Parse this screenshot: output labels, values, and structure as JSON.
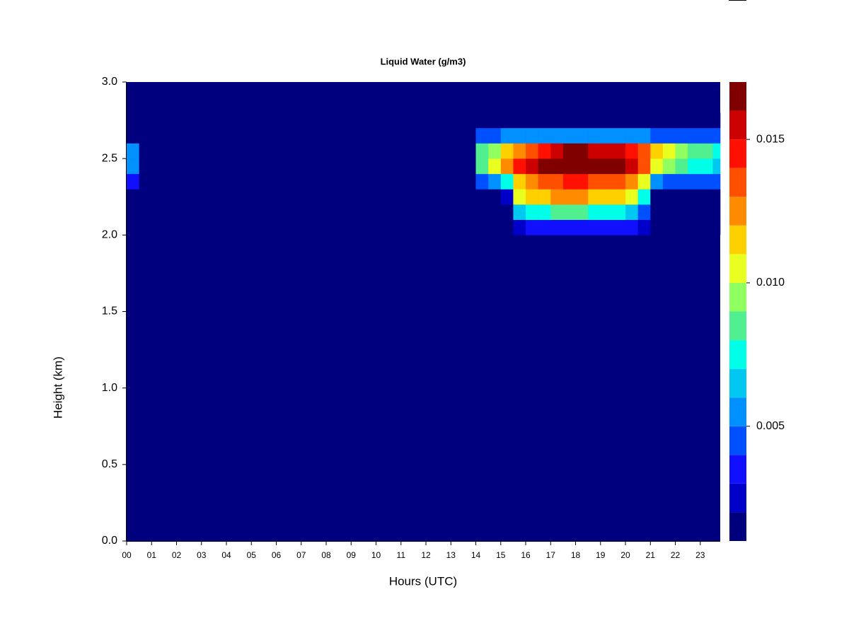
{
  "chart_data": {
    "type": "heatmap",
    "title": "Liquid Water (g/m3)",
    "x_label": "Hours (UTC)",
    "y_label": "Height (km)",
    "xlim": [
      0,
      23.8
    ],
    "ylim": [
      0,
      3.0
    ],
    "xticks": [
      {
        "value": 0,
        "label": "00"
      },
      {
        "value": 1,
        "label": "01"
      },
      {
        "value": 2,
        "label": "02"
      },
      {
        "value": 3,
        "label": "03"
      },
      {
        "value": 4,
        "label": "04"
      },
      {
        "value": 5,
        "label": "05"
      },
      {
        "value": 6,
        "label": "06"
      },
      {
        "value": 7,
        "label": "07"
      },
      {
        "value": 8,
        "label": "08"
      },
      {
        "value": 9,
        "label": "09"
      },
      {
        "value": 10,
        "label": "10"
      },
      {
        "value": 11,
        "label": "11"
      },
      {
        "value": 12,
        "label": "12"
      },
      {
        "value": 13,
        "label": "13"
      },
      {
        "value": 14,
        "label": "14"
      },
      {
        "value": 15,
        "label": "15"
      },
      {
        "value": 16,
        "label": "16"
      },
      {
        "value": 17,
        "label": "17"
      },
      {
        "value": 18,
        "label": "18"
      },
      {
        "value": 19,
        "label": "19"
      },
      {
        "value": 20,
        "label": "20"
      },
      {
        "value": 21,
        "label": "21"
      },
      {
        "value": 22,
        "label": "22"
      },
      {
        "value": 23,
        "label": "23"
      }
    ],
    "yticks": [
      {
        "value": 0,
        "label": "0.0"
      },
      0.5,
      {
        "value": 1,
        "label": "1.0"
      },
      1.5,
      {
        "value": 2,
        "label": "2.0"
      },
      2.5,
      {
        "value": 3,
        "label": "3.0"
      }
    ],
    "xbins": [
      0,
      0.5,
      1,
      1.5,
      2,
      2.5,
      3,
      3.5,
      4,
      4.5,
      5,
      5.5,
      6,
      6.5,
      7,
      7.5,
      8,
      8.5,
      9,
      9.5,
      10,
      10.5,
      11,
      11.5,
      12,
      12.5,
      13,
      13.5,
      14,
      14.5,
      15,
      15.5,
      16,
      16.5,
      17,
      17.5,
      18,
      18.5,
      19,
      19.5,
      20,
      20.5,
      21,
      21.5,
      22,
      22.5,
      23,
      23.5,
      23.8
    ],
    "ybins": [
      2.0,
      2.1,
      2.2,
      2.3,
      2.4,
      2.5,
      2.6,
      2.7,
      2.8
    ],
    "z": [
      [
        0,
        0,
        0,
        0,
        0,
        0,
        0,
        0,
        0,
        0,
        0,
        0,
        0,
        0,
        0,
        0,
        0,
        0,
        0,
        0,
        0,
        0,
        0,
        0,
        0,
        0,
        0,
        0,
        0,
        0,
        0,
        0.002,
        0.003,
        0.003,
        0.003,
        0.003,
        0.003,
        0.003,
        0.003,
        0.003,
        0.003,
        0.002,
        0,
        0,
        0,
        0,
        0,
        0
      ],
      [
        0,
        0,
        0,
        0,
        0,
        0,
        0,
        0,
        0,
        0,
        0,
        0,
        0,
        0,
        0,
        0,
        0,
        0,
        0,
        0,
        0,
        0,
        0,
        0,
        0,
        0,
        0,
        0,
        0,
        0,
        0,
        0.006,
        0.007,
        0.007,
        0.008,
        0.008,
        0.008,
        0.007,
        0.007,
        0.007,
        0.006,
        0.004,
        0,
        0,
        0,
        0,
        0,
        0
      ],
      [
        0,
        0,
        0,
        0,
        0,
        0,
        0,
        0,
        0,
        0,
        0,
        0,
        0,
        0,
        0,
        0,
        0,
        0,
        0,
        0,
        0,
        0,
        0,
        0,
        0,
        0,
        0,
        0,
        0,
        0,
        0.002,
        0.01,
        0.011,
        0.011,
        0.012,
        0.012,
        0.012,
        0.011,
        0.011,
        0.011,
        0.01,
        0.007,
        0,
        0,
        0,
        0,
        0,
        0
      ],
      [
        0.003,
        0,
        0,
        0,
        0,
        0,
        0,
        0,
        0,
        0,
        0,
        0,
        0,
        0,
        0,
        0,
        0,
        0,
        0,
        0,
        0,
        0,
        0,
        0,
        0,
        0,
        0,
        0,
        0.004,
        0.005,
        0.007,
        0.011,
        0.012,
        0.013,
        0.013,
        0.014,
        0.014,
        0.013,
        0.013,
        0.013,
        0.012,
        0.01,
        0.005,
        0.004,
        0.004,
        0.004,
        0.004,
        0.004
      ],
      [
        0.005,
        0,
        0,
        0,
        0,
        0,
        0,
        0,
        0,
        0,
        0,
        0,
        0,
        0,
        0,
        0,
        0,
        0,
        0,
        0,
        0,
        0,
        0,
        0,
        0,
        0,
        0,
        0,
        0.008,
        0.01,
        0.012,
        0.014,
        0.015,
        0.016,
        0.016,
        0.017,
        0.017,
        0.016,
        0.016,
        0.016,
        0.015,
        0.013,
        0.01,
        0.009,
        0.008,
        0.007,
        0.007,
        0.006
      ],
      [
        0.005,
        0,
        0,
        0,
        0,
        0,
        0,
        0,
        0,
        0,
        0,
        0,
        0,
        0,
        0,
        0,
        0,
        0,
        0,
        0,
        0,
        0,
        0,
        0,
        0,
        0,
        0,
        0,
        0.008,
        0.009,
        0.011,
        0.012,
        0.013,
        0.014,
        0.015,
        0.016,
        0.016,
        0.015,
        0.015,
        0.015,
        0.014,
        0.013,
        0.011,
        0.01,
        0.009,
        0.008,
        0.008,
        0.007
      ],
      [
        0,
        0,
        0,
        0,
        0,
        0,
        0,
        0,
        0,
        0,
        0,
        0,
        0,
        0,
        0,
        0,
        0,
        0,
        0,
        0,
        0,
        0,
        0,
        0,
        0,
        0,
        0,
        0,
        0.004,
        0.004,
        0.005,
        0.005,
        0.005,
        0.005,
        0.005,
        0.005,
        0.005,
        0.005,
        0.005,
        0.005,
        0.005,
        0.005,
        0.004,
        0.004,
        0.004,
        0.004,
        0.004,
        0.004
      ],
      [
        0,
        0,
        0,
        0,
        0,
        0,
        0,
        0,
        0,
        0,
        0,
        0,
        0,
        0,
        0,
        0,
        0,
        0,
        0,
        0,
        0,
        0,
        0,
        0,
        0,
        0,
        0,
        0,
        0.0015,
        0.0015,
        0.0015,
        0.0015,
        0.0015,
        0.0015,
        0.0015,
        0.0015,
        0.0015,
        0.0015,
        0.0015,
        0.0015,
        0.0015,
        0.0015,
        0.0015,
        0.0015,
        0.0015,
        0.0015,
        0.0015,
        0.0015
      ]
    ],
    "levels": [
      0.001,
      0.002,
      0.003,
      0.004,
      0.005,
      0.006,
      0.007,
      0.008,
      0.009,
      0.01,
      0.011,
      0.012,
      0.013,
      0.014,
      0.015,
      0.016,
      0.017
    ],
    "colors": [
      "#00007f",
      "#0000c8",
      "#1010ff",
      "#0050ff",
      "#0090ff",
      "#00c8f0",
      "#00ffe8",
      "#50f090",
      "#90ff60",
      "#e8ff20",
      "#ffd000",
      "#ff8c00",
      "#ff5000",
      "#ff1000",
      "#cc0000",
      "#800000"
    ],
    "colorbar_ticks": [
      0.005,
      {
        "value": 0.01,
        "label": "0.010"
      },
      0.015
    ]
  }
}
